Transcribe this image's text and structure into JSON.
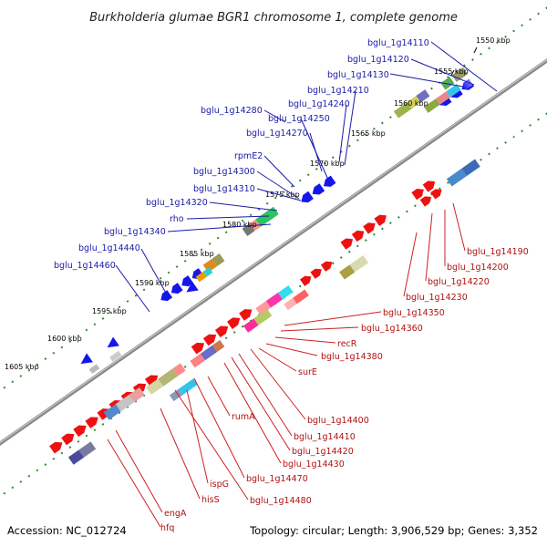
{
  "title": "Burkholderia glumae BGR1 chromosome 1, complete genome",
  "footer": {
    "accession": "Accession: NC_012724",
    "summary": "Topology: circular; Length: 3,906,529 bp; Genes: 3,352"
  },
  "colors": {
    "forward_gene": "#ee1111",
    "reverse_gene": "#1515ee",
    "backbone": "#8a8a8a",
    "dotted_track": "#2e8b2e",
    "label_forward": "#b01010",
    "label_reverse": "#1a1aa8"
  },
  "ticks": [
    "1550 kbp",
    "1555 kbp",
    "1560 kbp",
    "1565 kbp",
    "1570 kbp",
    "1575 kbp",
    "1580 kbp",
    "1585 kbp",
    "1590 kbp",
    "1595 kbp",
    "1600 kbp",
    "1605 kbp"
  ],
  "labels_reverse": [
    "bglu_1g14110",
    "bglu_1g14120",
    "bglu_1g14130",
    "bglu_1g14210",
    "bglu_1g14240",
    "bglu_1g14250",
    "bglu_1g14280",
    "bglu_1g14270",
    "rpmE2",
    "bglu_1g14300",
    "bglu_1g14310",
    "bglu_1g14320",
    "rho",
    "bglu_1g14340",
    "bglu_1g14440",
    "bglu_1g14460"
  ],
  "labels_forward": [
    "bglu_1g14190",
    "bglu_1g14200",
    "bglu_1g14220",
    "bglu_1g14230",
    "bglu_1g14350",
    "bglu_1g14360",
    "recR",
    "bglu_1g14380",
    "surE",
    "rumA",
    "bglu_1g14400",
    "bglu_1g14410",
    "bglu_1g14420",
    "bglu_1g14430",
    "bglu_1g14470",
    "ispG",
    "bglu_1g14480",
    "hisS",
    "engA",
    "hfq"
  ]
}
